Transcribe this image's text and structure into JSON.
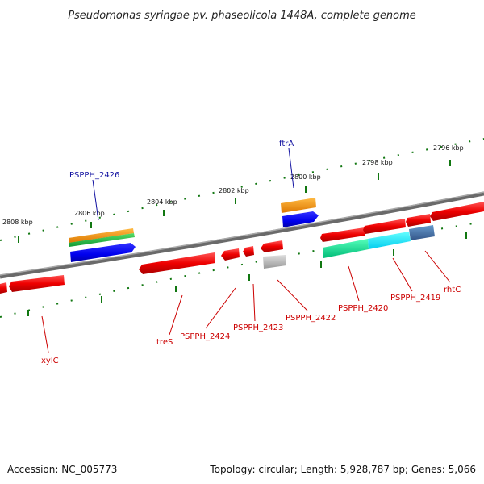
{
  "title": "Pseudomonas syringae pv. phaseolicola 1448A, complete genome",
  "footer": {
    "accession": "Accession: NC_005773",
    "summary": "Topology: circular; Length: 5,928,787 bp; Genes: 5,066"
  },
  "ticks": [
    "2796 kbp",
    "2798 kbp",
    "2800 kbp",
    "2802 kbp",
    "2804 kbp",
    "2806 kbp",
    "2808 kbp"
  ],
  "gene_labels": {
    "blue": [
      "PSPPH_2426",
      "ftrA"
    ],
    "red": [
      "xylC",
      "treS",
      "PSPPH_2424",
      "PSPPH_2423",
      "PSPPH_2422",
      "PSPPH_2420",
      "PSPPH_2419",
      "rhtC"
    ]
  },
  "colors": {
    "backbone": "#808080",
    "red_gene": "#ee0000",
    "blue_gene": "#0000ee",
    "orange_gene": "#ff9900",
    "green_gene": "#22bb44",
    "teal_gene": "#11ee99",
    "cyan_gene": "#11eeff",
    "steel_gene": "#4477aa",
    "grey_gene": "#bbbbbb",
    "tick_color": "#117711"
  }
}
